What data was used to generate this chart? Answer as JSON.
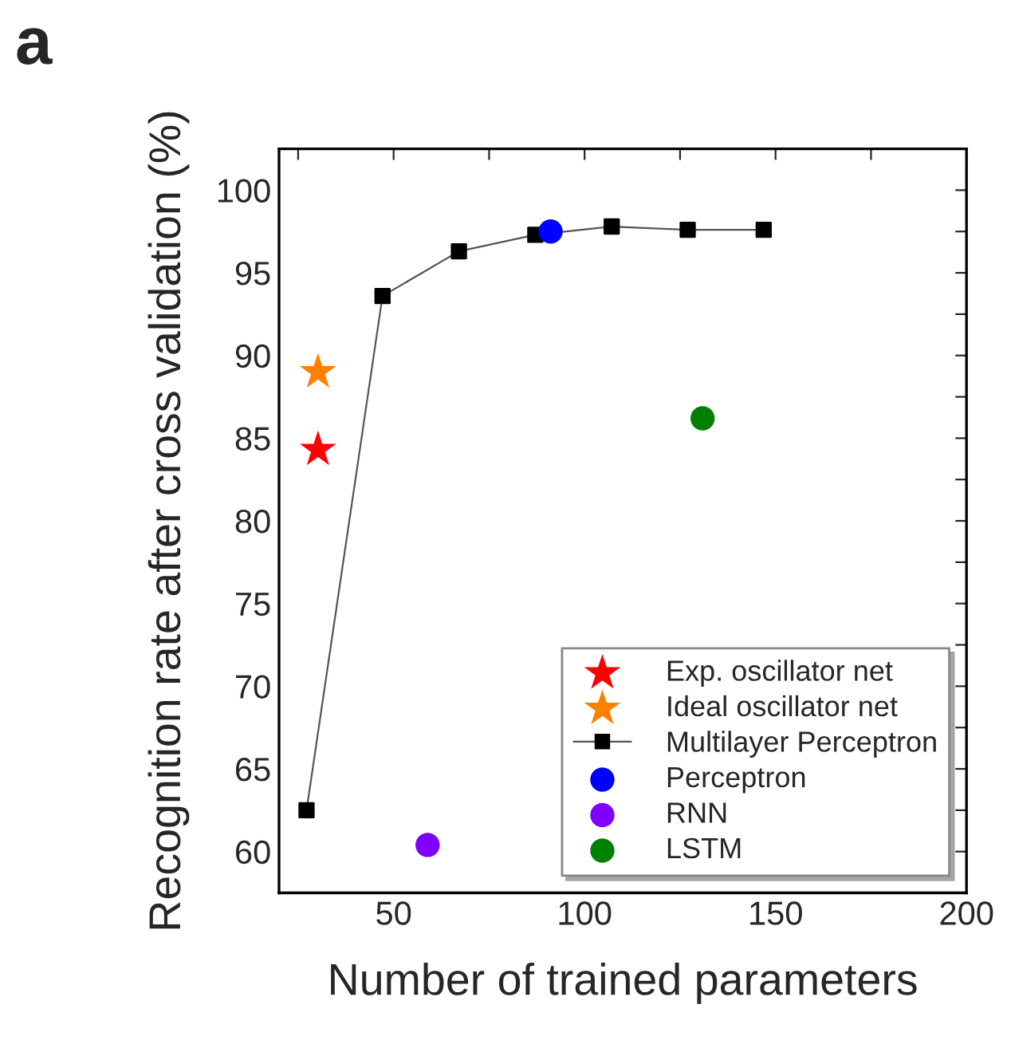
{
  "chart_data": {
    "type": "scatter",
    "xlabel": "Number of trained parameters",
    "ylabel": "Recognition rate after cross validation (%)",
    "annotations": [
      "a"
    ],
    "xlim": [
      20,
      200
    ],
    "ylim": [
      57.5,
      102.5
    ],
    "xticks": [
      {
        "value": 25,
        "label": null
      },
      50,
      {
        "value": 75,
        "label": null
      },
      100,
      {
        "value": 125,
        "label": null
      },
      150,
      {
        "value": 175,
        "label": null
      },
      200
    ],
    "yticks": [
      {
        "value": 57.5,
        "label": null
      },
      60,
      {
        "value": 62.5,
        "label": null
      },
      65,
      {
        "value": 67.5,
        "label": null
      },
      70,
      {
        "value": 72.5,
        "label": null
      },
      75,
      {
        "value": 77.5,
        "label": null
      },
      80,
      {
        "value": 82.5,
        "label": null
      },
      85,
      {
        "value": 87.5,
        "label": null
      },
      90,
      {
        "value": 92.5,
        "label": null
      },
      95,
      {
        "value": 97.5,
        "label": null
      },
      100,
      {
        "value": 102.5,
        "label": null
      }
    ],
    "grid": false,
    "legend": "bottom right",
    "series": [
      {
        "name": "Exp. oscillator net",
        "marker": "star",
        "color": "#ff0000",
        "x": [
          30.2
        ],
        "values": [
          84.3
        ]
      },
      {
        "name": "Ideal oscillator net",
        "marker": "star",
        "color": "#ff8000",
        "x": [
          30.2
        ],
        "values": [
          89.0
        ]
      },
      {
        "name": "Multilayer Perceptron",
        "type": "line",
        "marker": "square",
        "color": "#000000",
        "x": [
          27.2,
          47.1,
          67.1,
          87.1,
          107.1,
          127,
          146.9
        ],
        "values": [
          62.5,
          93.6,
          96.3,
          97.3,
          97.8,
          97.6,
          97.6
        ]
      },
      {
        "name": "Perceptron",
        "marker": "circle",
        "color": "#0000ff",
        "x": [
          91.1
        ],
        "values": [
          97.5
        ]
      },
      {
        "name": "RNN",
        "marker": "circle",
        "color": "#8000ff",
        "x": [
          58.9
        ],
        "values": [
          60.4
        ]
      },
      {
        "name": "LSTM",
        "marker": "circle",
        "color": "#008000",
        "x": [
          130.9
        ],
        "values": [
          86.2
        ]
      }
    ]
  }
}
